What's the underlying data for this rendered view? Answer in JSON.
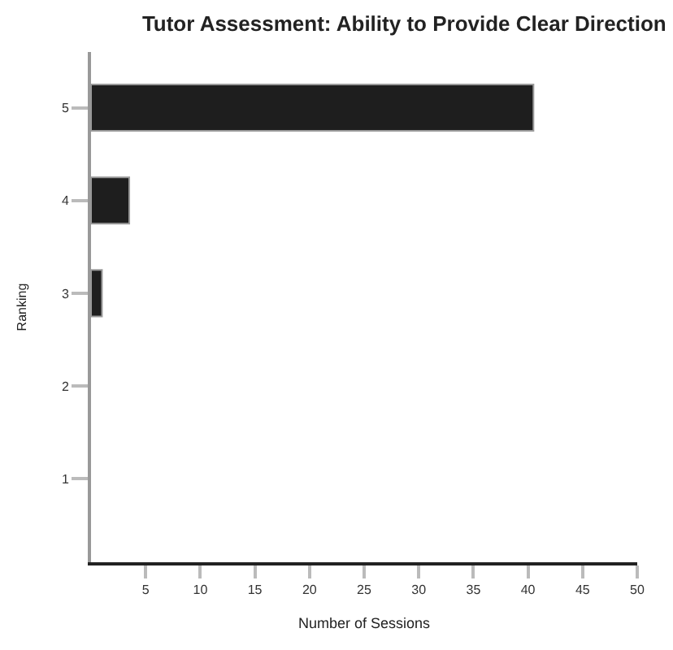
{
  "chart_data": {
    "type": "bar",
    "orientation": "horizontal",
    "title": "Tutor Assessment: Ability to Provide Clear Direction",
    "xlabel": "Number of Sessions",
    "ylabel": "Ranking",
    "categories": [
      "5",
      "4",
      "3",
      "2",
      "1"
    ],
    "values": [
      40.5,
      3.5,
      1,
      0,
      0
    ],
    "color": "#1e1e1e",
    "xlim": [
      0,
      50
    ],
    "xticks": [
      5,
      10,
      15,
      20,
      25,
      30,
      35,
      40,
      45,
      50
    ]
  }
}
